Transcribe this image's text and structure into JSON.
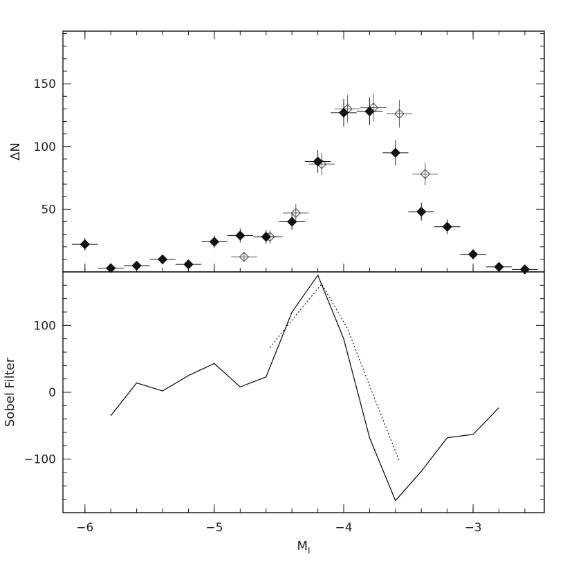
{
  "chart_data": [
    {
      "panel": "top",
      "type": "scatter",
      "ylabel": "ΔN",
      "xlim": [
        -6.17,
        -2.45
      ],
      "ylim": [
        0,
        192
      ],
      "grid": false,
      "y_ticks": [
        50,
        100,
        150
      ],
      "series": [
        {
          "marker": "filled-diamond",
          "x": [
            -6.0,
            -5.8,
            -5.6,
            -5.4,
            -5.2,
            -5.0,
            -4.8,
            -4.6,
            -4.4,
            -4.2,
            -4.0,
            -3.8,
            -3.6,
            -3.4,
            -3.2,
            -3.0,
            -2.8,
            -2.6
          ],
          "y": [
            22,
            3,
            5,
            10,
            6,
            24,
            29,
            28,
            40,
            88,
            127,
            128,
            95,
            48,
            36,
            14,
            4,
            2
          ],
          "yerr": [
            5,
            2,
            2.5,
            3,
            2.5,
            5,
            5.5,
            5.5,
            6.5,
            9,
            11,
            11,
            10,
            7,
            6,
            4,
            2,
            1.5
          ]
        },
        {
          "marker": "open-diamond",
          "x": [
            -4.77,
            -4.57,
            -4.37,
            -4.17,
            -3.97,
            -3.77,
            -3.57,
            -3.37
          ],
          "y": [
            12,
            28,
            47,
            86,
            130,
            131,
            126,
            78
          ],
          "yerr": [
            3.5,
            5.5,
            7,
            9,
            11,
            11,
            11,
            9
          ]
        }
      ]
    },
    {
      "panel": "bottom",
      "type": "line",
      "xlabel": "M",
      "xlabel_subscript": "I",
      "ylabel": "Sobel Filter",
      "xlim": [
        -6.17,
        -2.45
      ],
      "ylim": [
        -180,
        180
      ],
      "grid": false,
      "x_ticks": [
        -6,
        -5,
        -4,
        -3
      ],
      "x_tick_labels": [
        "−6",
        "−5",
        "−4",
        "−3"
      ],
      "y_ticks": [
        -100,
        0,
        100
      ],
      "y_tick_labels": [
        "−100",
        "0",
        "100"
      ],
      "series": [
        {
          "style": "solid",
          "x": [
            -5.8,
            -5.6,
            -5.4,
            -5.2,
            -5.0,
            -4.8,
            -4.6,
            -4.4,
            -4.2,
            -4.0,
            -3.8,
            -3.6,
            -3.4,
            -3.2,
            -3.0,
            -2.8
          ],
          "y": [
            -35,
            14,
            2,
            25,
            43,
            8,
            23,
            120,
            175,
            80,
            -68,
            -162,
            -118,
            -68,
            -63,
            -23
          ]
        },
        {
          "style": "dotted",
          "x": [
            -4.57,
            -4.37,
            -4.17,
            -3.97,
            -3.77,
            -3.57
          ],
          "y": [
            67,
            115,
            162,
            95,
            -5,
            -103
          ]
        }
      ]
    }
  ]
}
